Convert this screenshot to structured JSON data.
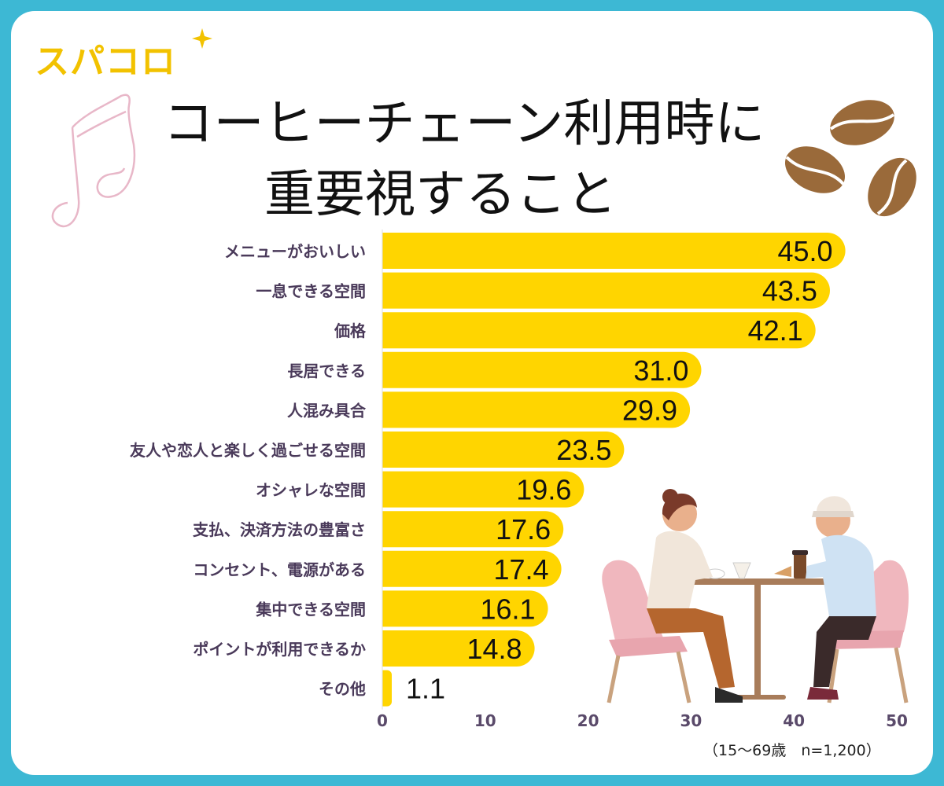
{
  "brand": {
    "logo_text": "スパコロ"
  },
  "colors": {
    "frame": "#3db8d4",
    "bar": "#ffd500",
    "label": "#4a3a5a",
    "axis_text": "#5a4a6a"
  },
  "icons": [
    "sparkle-icon",
    "music-note-icon",
    "coffee-bean-icon",
    "cafe-couple-illustration"
  ],
  "chart_data": {
    "type": "bar",
    "orientation": "horizontal",
    "title": "コーヒーチェーン利用時に重要視すること",
    "title_lines": [
      "コーヒーチェーン利用時に",
      "重要視すること"
    ],
    "categories": [
      "メニューがおいしい",
      "一息できる空間",
      "価格",
      "長居できる",
      "人混み具合",
      "友人や恋人と楽しく過ごせる空間",
      "オシャレな空間",
      "支払、決済方法の豊富さ",
      "コンセント、電源がある",
      "集中できる空間",
      "ポイントが利用できるか",
      "その他"
    ],
    "values": [
      45.0,
      43.5,
      42.1,
      31.0,
      29.9,
      23.5,
      19.6,
      17.6,
      17.4,
      16.1,
      14.8,
      1.1
    ],
    "value_labels": [
      "45.0",
      "43.5",
      "42.1",
      "31.0",
      "29.9",
      "23.5",
      "19.6",
      "17.6",
      "17.4",
      "16.1",
      "14.8",
      "1.1"
    ],
    "xlim": [
      0,
      50
    ],
    "xticks": [
      "0",
      "10",
      "20",
      "30",
      "40",
      "50"
    ],
    "grid": false,
    "note": "（15〜69歳　n=1,200）"
  }
}
